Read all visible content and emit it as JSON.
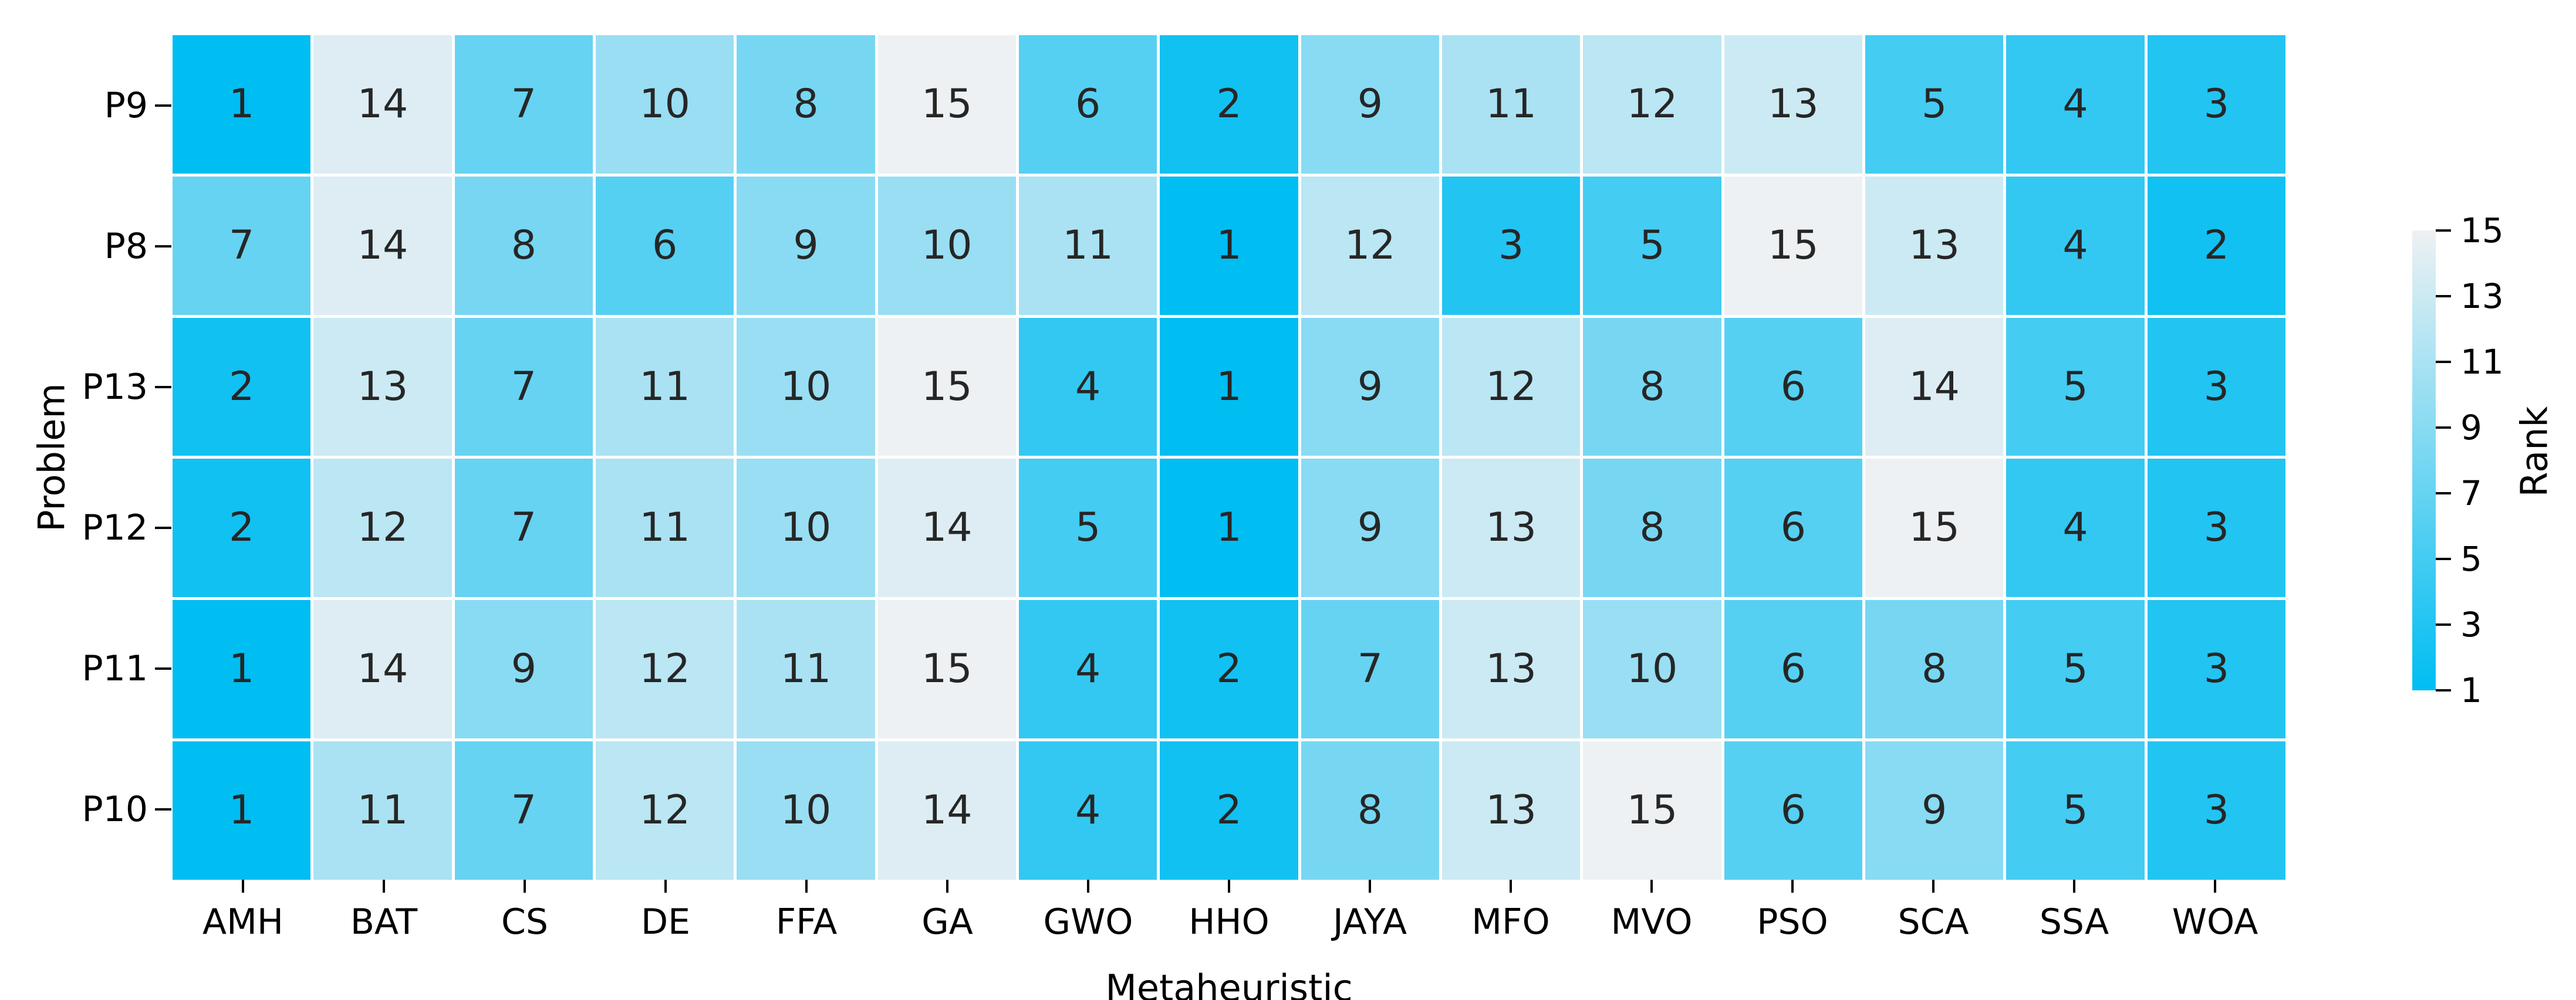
{
  "figure": {
    "background_color": "#ffffff"
  },
  "chart_data": {
    "type": "heatmap",
    "xlabel": "Metaheuristic",
    "ylabel": "Problem",
    "x_categories": [
      "AMH",
      "BAT",
      "CS",
      "DE",
      "FFA",
      "GA",
      "GWO",
      "HHO",
      "JAYA",
      "MFO",
      "MVO",
      "PSO",
      "SCA",
      "SSA",
      "WOA"
    ],
    "y_categories": [
      "P9",
      "P8",
      "P13",
      "P12",
      "P11",
      "P10"
    ],
    "values": [
      [
        1,
        14,
        7,
        10,
        8,
        15,
        6,
        2,
        9,
        11,
        12,
        13,
        5,
        4,
        3
      ],
      [
        7,
        14,
        8,
        6,
        9,
        10,
        11,
        1,
        12,
        3,
        5,
        15,
        13,
        4,
        2
      ],
      [
        2,
        13,
        7,
        11,
        10,
        15,
        4,
        1,
        9,
        12,
        8,
        6,
        14,
        5,
        3
      ],
      [
        2,
        12,
        7,
        11,
        10,
        14,
        5,
        1,
        9,
        13,
        8,
        6,
        15,
        4,
        3
      ],
      [
        1,
        14,
        9,
        12,
        11,
        15,
        4,
        2,
        7,
        13,
        10,
        6,
        8,
        5,
        3
      ],
      [
        1,
        11,
        7,
        12,
        10,
        14,
        4,
        2,
        8,
        13,
        15,
        6,
        9,
        5,
        3
      ]
    ],
    "value_range": [
      1,
      15
    ],
    "annotations_shown": true,
    "grid": false,
    "colormap": {
      "low_value_color": "#00BDF2",
      "high_value_color": "#EEF1F3",
      "gap_color": "#ffffff",
      "annotation_text_color": "#262626"
    },
    "colorbar": {
      "label": "Rank",
      "ticks": [
        1,
        3,
        5,
        7,
        9,
        11,
        13,
        15
      ],
      "min": 1,
      "max": 15,
      "position": "right"
    }
  }
}
